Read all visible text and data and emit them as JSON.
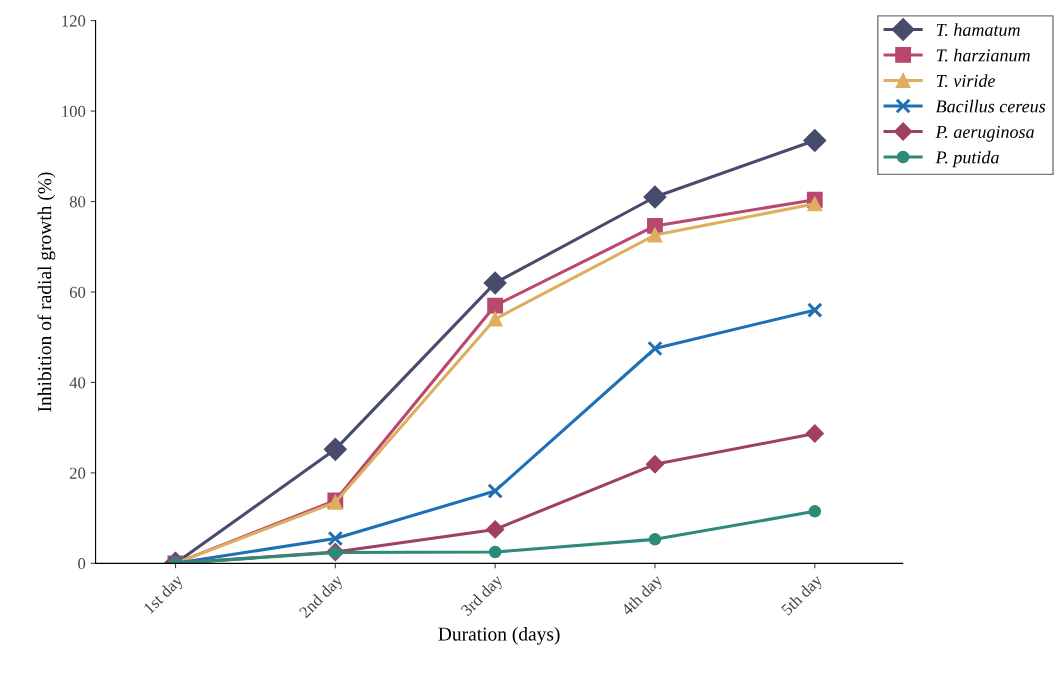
{
  "chart_data": {
    "type": "line",
    "xlabel": "Duration (days)",
    "ylabel": "Inhibition of radial growth (%)",
    "categories": [
      "1st day",
      "2nd day",
      "3rd day",
      "4th day",
      "5th day"
    ],
    "series": [
      {
        "name": "T. hamatum",
        "color": "#484c6c",
        "marker": "diamond",
        "values": [
          0,
          25.2,
          62,
          81,
          93.5
        ]
      },
      {
        "name": "T. harzianum",
        "color": "#b8486e",
        "marker": "square",
        "values": [
          0,
          13.9,
          57,
          74.6,
          80.4
        ]
      },
      {
        "name": "T. viride",
        "color": "#deae5e",
        "marker": "triangle",
        "values": [
          0,
          13.5,
          54,
          72.6,
          79.5
        ]
      },
      {
        "name": "Bacillus cereus",
        "color": "#1f6fb5",
        "marker": "cross",
        "values": [
          0,
          5.5,
          16,
          47.5,
          56
        ]
      },
      {
        "name": "P. aeruginosa",
        "color": "#a04060",
        "marker": "diamond",
        "values": [
          0,
          2.5,
          7.5,
          21.9,
          28.7
        ]
      },
      {
        "name": "P. putida",
        "color": "#2e8a78",
        "marker": "circle",
        "values": [
          0,
          2.4,
          2.5,
          5.3,
          11.5
        ]
      }
    ],
    "ylim": [
      0,
      120
    ],
    "yticks": [
      0,
      20,
      40,
      60,
      80,
      100,
      120
    ],
    "grid": false,
    "legend": "top right",
    "line_style": "solid"
  }
}
